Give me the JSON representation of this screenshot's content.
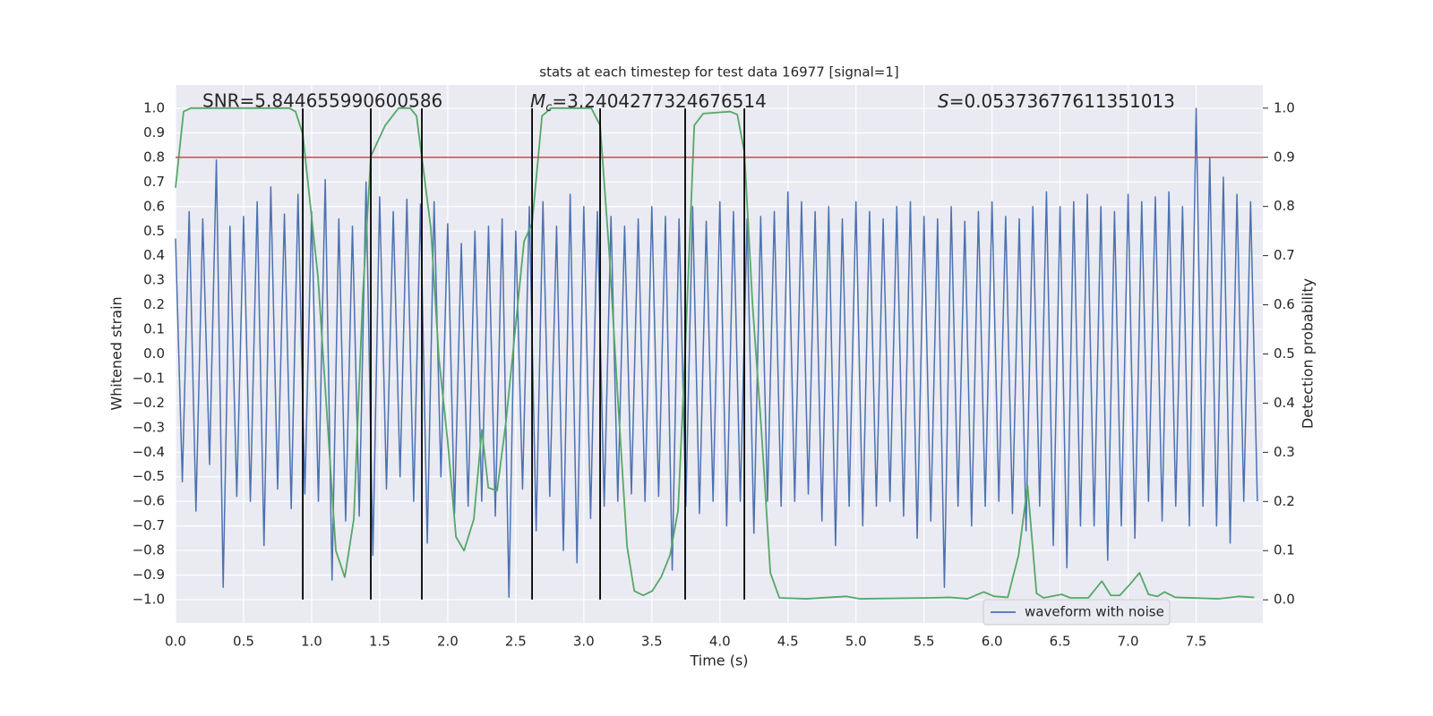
{
  "chart_data": {
    "type": "line",
    "title": "stats at each timestep for test data 16977 [signal=1]",
    "xlabel": "Time (s)",
    "ylabel": "Whitened strain",
    "y2label": "Detection probability",
    "annotations": {
      "snr": "SNR=5.844655990600586",
      "mc": {
        "symbol": "M",
        "subscript": "c",
        "text": "=3.2404277324676514"
      },
      "s": {
        "symbol": "S",
        "text": "=0.05373677611351013"
      }
    },
    "xlim": [
      0,
      7.99
    ],
    "xticks": [
      {
        "value": 0,
        "label": "0.0"
      },
      0.5,
      {
        "value": 1,
        "label": "1.0"
      },
      1.5,
      {
        "value": 2,
        "label": "2.0"
      },
      2.5,
      {
        "value": 3,
        "label": "3.0"
      },
      3.5,
      {
        "value": 4,
        "label": "4.0"
      },
      4.5,
      {
        "value": 5,
        "label": "5.0"
      },
      5.5,
      {
        "value": 6,
        "label": "6.0"
      },
      6.5,
      {
        "value": 7,
        "label": "7.0"
      },
      7.5
    ],
    "ylim": [
      -1.095,
      1.095
    ],
    "yticks": [
      {
        "value": -1,
        "label": "−1.0"
      },
      {
        "value": -0.9,
        "label": "−0.9"
      },
      {
        "value": -0.8,
        "label": "−0.8"
      },
      {
        "value": -0.7,
        "label": "−0.7"
      },
      {
        "value": -0.6,
        "label": "−0.6"
      },
      {
        "value": -0.5,
        "label": "−0.5"
      },
      {
        "value": -0.4,
        "label": "−0.4"
      },
      {
        "value": -0.3,
        "label": "−0.3"
      },
      {
        "value": -0.2,
        "label": "−0.2"
      },
      {
        "value": -0.1,
        "label": "−0.1"
      },
      {
        "value": 0,
        "label": "0.0"
      },
      0.1,
      0.2,
      0.3,
      0.4,
      0.5,
      0.6,
      0.7,
      0.8,
      0.9,
      {
        "value": 1,
        "label": "1.0"
      }
    ],
    "y2lim": [
      -0.047,
      1.047
    ],
    "y2ticks": [
      {
        "value": 0,
        "label": "0.0"
      },
      0.1,
      0.2,
      0.3,
      0.4,
      0.5,
      0.6,
      0.7,
      0.8,
      0.9,
      {
        "value": 1,
        "label": "1.0"
      }
    ],
    "grid": true,
    "legend": "lower right",
    "series": [
      {
        "name": "waveform with noise",
        "color": "#4c72b0",
        "x": [
          0,
          0.05,
          0.1,
          0.15,
          0.2,
          0.25,
          0.3,
          0.35,
          0.4,
          0.45,
          0.5,
          0.55,
          0.6,
          0.65,
          0.7,
          0.75,
          0.8,
          0.85,
          0.9,
          0.95,
          1,
          1.05,
          1.1,
          1.15,
          1.2,
          1.25,
          1.3,
          1.35,
          1.4,
          1.45,
          1.5,
          1.55,
          1.6,
          1.65,
          1.7,
          1.75,
          1.8,
          1.85,
          1.9,
          1.95,
          2,
          2.05,
          2.1,
          2.15,
          2.2,
          2.25,
          2.3,
          2.35,
          2.4,
          2.45,
          2.5,
          2.55,
          2.6,
          2.65,
          2.7,
          2.75,
          2.8,
          2.85,
          2.9,
          2.95,
          3,
          3.05,
          3.1,
          3.15,
          3.2,
          3.25,
          3.3,
          3.35,
          3.4,
          3.45,
          3.5,
          3.55,
          3.6,
          3.65,
          3.7,
          3.75,
          3.8,
          3.85,
          3.9,
          3.95,
          4,
          4.05,
          4.1,
          4.15,
          4.2,
          4.25,
          4.3,
          4.35,
          4.4,
          4.45,
          4.5,
          4.55,
          4.6,
          4.65,
          4.7,
          4.75,
          4.8,
          4.85,
          4.9,
          4.95,
          5,
          5.05,
          5.1,
          5.15,
          5.2,
          5.25,
          5.3,
          5.35,
          5.4,
          5.45,
          5.5,
          5.55,
          5.6,
          5.65,
          5.7,
          5.75,
          5.8,
          5.85,
          5.9,
          5.95,
          6,
          6.05,
          6.1,
          6.15,
          6.2,
          6.25,
          6.3,
          6.35,
          6.4,
          6.45,
          6.5,
          6.55,
          6.6,
          6.65,
          6.7,
          6.75,
          6.8,
          6.85,
          6.9,
          6.95,
          7,
          7.05,
          7.1,
          7.15,
          7.2,
          7.25,
          7.3,
          7.35,
          7.4,
          7.45,
          7.5,
          7.55,
          7.6,
          7.65,
          7.7,
          7.75,
          7.8,
          7.85,
          7.9,
          7.95
        ],
        "values": [
          0.47,
          -0.52,
          0.58,
          -0.64,
          0.55,
          -0.45,
          0.79,
          -0.95,
          0.52,
          -0.58,
          0.56,
          -0.6,
          0.62,
          -0.78,
          0.68,
          -0.55,
          0.57,
          -0.63,
          0.65,
          -0.57,
          0.58,
          -0.6,
          0.71,
          -0.92,
          0.55,
          -0.68,
          0.52,
          -0.66,
          0.7,
          -0.82,
          0.64,
          -0.55,
          0.58,
          -0.5,
          0.63,
          -0.6,
          0.61,
          -0.77,
          0.62,
          -0.5,
          0.53,
          -0.65,
          0.45,
          -0.62,
          0.5,
          -0.6,
          0.52,
          -0.66,
          0.55,
          -0.99,
          0.5,
          -0.55,
          0.6,
          -0.72,
          0.62,
          -0.58,
          0.52,
          -0.8,
          0.65,
          -0.85,
          0.6,
          -0.67,
          0.58,
          -0.62,
          0.56,
          -0.6,
          0.52,
          -0.57,
          0.55,
          -0.6,
          0.6,
          -0.58,
          0.56,
          -0.88,
          0.55,
          -0.62,
          0.6,
          -0.65,
          0.54,
          -0.6,
          0.62,
          -0.7,
          0.58,
          -0.6,
          0.55,
          -0.73,
          0.56,
          -0.6,
          0.58,
          -0.62,
          0.66,
          -0.6,
          0.62,
          -0.57,
          0.58,
          -0.68,
          0.6,
          -0.78,
          0.55,
          -0.62,
          0.62,
          -0.7,
          0.58,
          -0.62,
          0.55,
          -0.6,
          0.6,
          -0.66,
          0.62,
          -0.75,
          0.56,
          -0.68,
          0.55,
          -0.95,
          0.6,
          -0.62,
          0.54,
          -0.7,
          0.58,
          -0.62,
          0.62,
          -0.6,
          0.56,
          -0.65,
          0.55,
          -0.72,
          0.6,
          -0.62,
          0.66,
          -0.78,
          0.6,
          -0.87,
          0.62,
          -0.7,
          0.65,
          -0.7,
          0.6,
          -0.84,
          0.58,
          -0.7,
          0.65,
          -0.75,
          0.62,
          -0.6,
          0.64,
          -0.68,
          0.66,
          -0.62,
          0.6,
          -0.7,
          1.0,
          -0.62,
          0.8,
          -0.7,
          0.72,
          -0.77,
          0.65,
          -0.6,
          0.62,
          -0.6
        ]
      },
      {
        "color": "#55a868",
        "axis": "y2",
        "x": [
          0,
          0.059,
          0.112,
          0.836,
          0.882,
          0.935,
          1.047,
          1.178,
          1.244,
          1.31,
          1.376,
          1.435,
          1.541,
          1.639,
          1.725,
          1.771,
          1.81,
          1.876,
          1.935,
          2.001,
          2.061,
          2.12,
          2.192,
          2.251,
          2.298,
          2.363,
          2.429,
          2.495,
          2.561,
          2.62,
          2.693,
          2.759,
          3.055,
          3.12,
          3.186,
          3.252,
          3.318,
          3.371,
          3.437,
          3.503,
          3.568,
          3.634,
          3.693,
          3.746,
          3.812,
          3.878,
          4.075,
          4.128,
          4.18,
          4.24,
          4.305,
          4.371,
          4.437,
          4.635,
          4.931,
          5.03,
          5.556,
          5.688,
          5.82,
          5.938,
          6.017,
          6.116,
          6.195,
          6.261,
          6.327,
          6.379,
          6.511,
          6.577,
          6.708,
          6.807,
          6.873,
          6.939,
          7.018,
          7.084,
          7.15,
          7.215,
          7.268,
          7.347,
          7.663,
          7.814,
          7.926
        ],
        "values": [
          0.838,
          0.993,
          1.0,
          1.0,
          0.993,
          0.947,
          0.656,
          0.1,
          0.046,
          0.164,
          0.619,
          0.902,
          0.965,
          1.0,
          1.0,
          0.984,
          0.9,
          0.756,
          0.492,
          0.319,
          0.128,
          0.1,
          0.164,
          0.346,
          0.228,
          0.222,
          0.364,
          0.546,
          0.729,
          0.765,
          0.984,
          1.0,
          1.0,
          0.965,
          0.71,
          0.401,
          0.109,
          0.018,
          0.009,
          0.018,
          0.046,
          0.091,
          0.182,
          0.51,
          0.965,
          0.989,
          0.993,
          0.987,
          0.911,
          0.601,
          0.346,
          0.055,
          0.004,
          0.002,
          0.007,
          0.002,
          0.004,
          0.005,
          0.002,
          0.016,
          0.007,
          0.005,
          0.091,
          0.233,
          0.013,
          0.004,
          0.011,
          0.004,
          0.004,
          0.038,
          0.009,
          0.009,
          0.033,
          0.055,
          0.011,
          0.007,
          0.016,
          0.005,
          0.002,
          0.007,
          0.005
        ]
      }
    ],
    "threshold": {
      "axis": "y2",
      "value": 0.9,
      "color": "#c44e52"
    },
    "vlines": {
      "color": "#000000",
      "x": [
        0.935,
        1.435,
        1.81,
        2.62,
        3.12,
        3.745,
        4.18
      ]
    }
  }
}
